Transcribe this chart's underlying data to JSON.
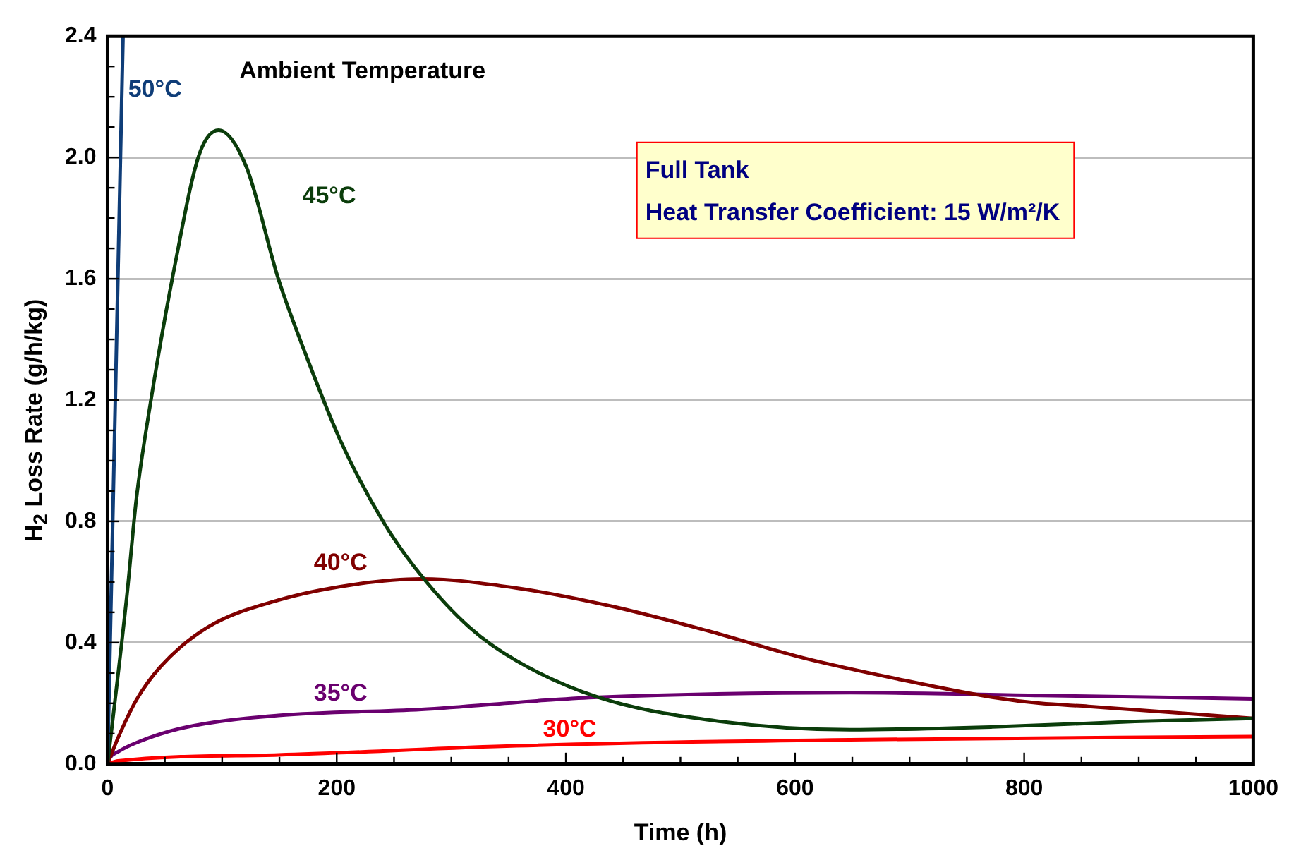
{
  "chart_data": {
    "type": "line",
    "xlabel": "Time (h)",
    "ylabel": "H$_{2}$ Loss Rate (g/h/kg)",
    "legend_title": "Ambient Temperature",
    "annotations": [
      "Full Tank",
      "Heat Transfer Coefficient: 15 W/m²/K"
    ],
    "xlim": [
      0,
      1000
    ],
    "xticks": [
      0,
      {
        "value": 50,
        "label": null
      },
      {
        "value": 100,
        "label": null
      },
      {
        "value": 150,
        "label": null
      },
      200,
      {
        "value": 250,
        "label": null
      },
      {
        "value": 300,
        "label": null
      },
      {
        "value": 350,
        "label": null
      },
      400,
      {
        "value": 450,
        "label": null
      },
      {
        "value": 500,
        "label": null
      },
      {
        "value": 550,
        "label": null
      },
      600,
      {
        "value": 650,
        "label": null
      },
      {
        "value": 700,
        "label": null
      },
      {
        "value": 750,
        "label": null
      },
      800,
      {
        "value": 850,
        "label": null
      },
      {
        "value": 900,
        "label": null
      },
      {
        "value": 950,
        "label": null
      },
      1000
    ],
    "ylim": [
      0,
      2.4
    ],
    "yticks": [
      {
        "value": 0,
        "label": "0.0"
      },
      {
        "value": 0.1,
        "label": null
      },
      {
        "value": 0.2,
        "label": null
      },
      {
        "value": 0.3,
        "label": null
      },
      {
        "value": 0.4,
        "label": "0.4"
      },
      {
        "value": 0.5,
        "label": null
      },
      {
        "value": 0.6,
        "label": null
      },
      {
        "value": 0.7,
        "label": null
      },
      {
        "value": 0.8,
        "label": "0.8"
      },
      {
        "value": 0.9,
        "label": null
      },
      {
        "value": 1.0,
        "label": null
      },
      {
        "value": 1.1,
        "label": null
      },
      {
        "value": 1.2,
        "label": "1.2"
      },
      {
        "value": 1.3,
        "label": null
      },
      {
        "value": 1.4,
        "label": null
      },
      {
        "value": 1.5,
        "label": null
      },
      {
        "value": 1.6,
        "label": "1.6"
      },
      {
        "value": 1.7,
        "label": null
      },
      {
        "value": 1.8,
        "label": null
      },
      {
        "value": 1.9,
        "label": null
      },
      {
        "value": 2.0,
        "label": "2.0"
      },
      {
        "value": 2.1,
        "label": null
      },
      {
        "value": 2.2,
        "label": null
      },
      {
        "value": 2.3,
        "label": null
      },
      {
        "value": 2.4,
        "label": "2.4"
      }
    ],
    "grid": "y",
    "legend": false,
    "marker": "none",
    "line_style": "solid",
    "series": [
      {
        "name": "50°C",
        "color": "#0f3d78",
        "x": [
          0,
          13.5
        ],
        "values": [
          0,
          2.4
        ]
      },
      {
        "name": "45°C",
        "color": "#0b3d0b",
        "x": [
          0,
          17,
          25,
          37,
          59,
          80,
          97,
          121,
          149,
          174,
          204,
          242,
          274,
          316,
          357,
          428,
          523,
          648,
          772,
          897,
          1000
        ],
        "values": [
          0,
          0.56,
          0.87,
          1.18,
          1.65,
          2.01,
          2.09,
          1.97,
          1.6,
          1.34,
          1.06,
          0.79,
          0.62,
          0.45,
          0.34,
          0.22,
          0.146,
          0.113,
          0.122,
          0.14,
          0.15
        ]
      },
      {
        "name": "40°C",
        "color": "#800000",
        "x": [
          0,
          9,
          25,
          46,
          87,
          149,
          212,
          274,
          357,
          440,
          523,
          607,
          690,
          772,
          814,
          856,
          1000
        ],
        "values": [
          0,
          0.085,
          0.21,
          0.32,
          0.45,
          0.54,
          0.59,
          0.61,
          0.58,
          0.52,
          0.44,
          0.35,
          0.28,
          0.22,
          0.2,
          0.19,
          0.15
        ]
      },
      {
        "name": "35°C",
        "color": "#6a006f",
        "x": [
          0,
          2,
          9,
          25,
          67,
          149,
          274,
          382,
          428,
          648,
          814,
          1000
        ],
        "values": [
          0,
          0.02,
          0.04,
          0.07,
          0.12,
          0.16,
          0.18,
          0.21,
          0.22,
          0.235,
          0.226,
          0.215
        ]
      },
      {
        "name": "30°C",
        "color": "#ff0000",
        "x": [
          0,
          9,
          149,
          357,
          648,
          1000
        ],
        "values": [
          0,
          0.01,
          0.03,
          0.06,
          0.08,
          0.09
        ]
      }
    ]
  }
}
